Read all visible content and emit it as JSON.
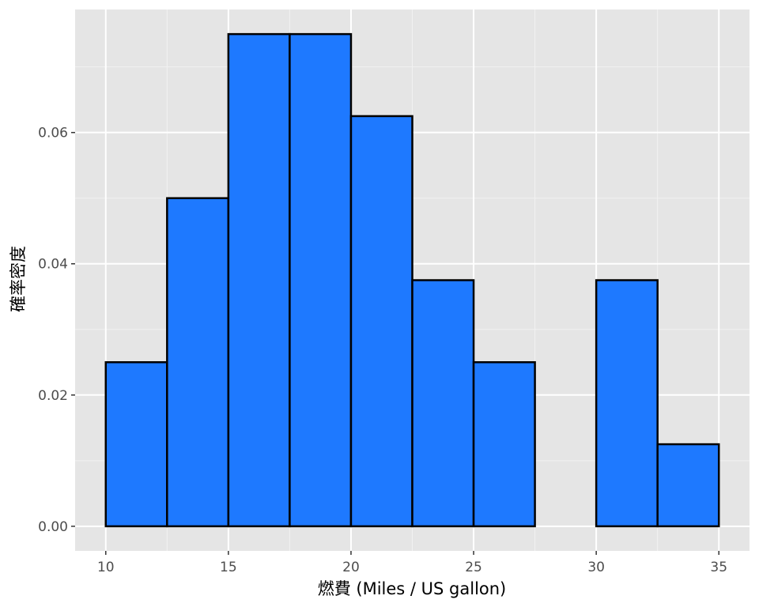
{
  "chart_data": {
    "type": "bar",
    "subtype": "histogram",
    "xlabel": "燃費 (Miles / US gallon)",
    "ylabel": "確率密度",
    "xlim": [
      8.75,
      36.25
    ],
    "ylim": [
      -0.00375,
      0.07875
    ],
    "x_ticks": [
      10,
      15,
      20,
      25,
      30,
      35
    ],
    "x_tick_labels": [
      "10",
      "15",
      "20",
      "25",
      "30",
      "35"
    ],
    "y_ticks": [
      0.0,
      0.02,
      0.04,
      0.06
    ],
    "y_tick_labels": [
      "0.00",
      "0.02",
      "0.04",
      "0.06"
    ],
    "bin_width": 2.5,
    "bins": [
      {
        "x0": 10.0,
        "x1": 12.5,
        "density": 0.025
      },
      {
        "x0": 12.5,
        "x1": 15.0,
        "density": 0.05
      },
      {
        "x0": 15.0,
        "x1": 17.5,
        "density": 0.075
      },
      {
        "x0": 17.5,
        "x1": 20.0,
        "density": 0.075
      },
      {
        "x0": 20.0,
        "x1": 22.5,
        "density": 0.0625
      },
      {
        "x0": 22.5,
        "x1": 25.0,
        "density": 0.0375
      },
      {
        "x0": 25.0,
        "x1": 27.5,
        "density": 0.025
      },
      {
        "x0": 27.5,
        "x1": 30.0,
        "density": 0.0
      },
      {
        "x0": 30.0,
        "x1": 32.5,
        "density": 0.0375
      },
      {
        "x0": 32.5,
        "x1": 35.0,
        "density": 0.0125
      }
    ],
    "grid": true,
    "colors": {
      "bar_fill": "#1E79FF",
      "bar_stroke": "#000000",
      "panel_background": "#E5E5E5",
      "grid_major": "#FFFFFF",
      "grid_minor": "#F2F2F2"
    }
  }
}
